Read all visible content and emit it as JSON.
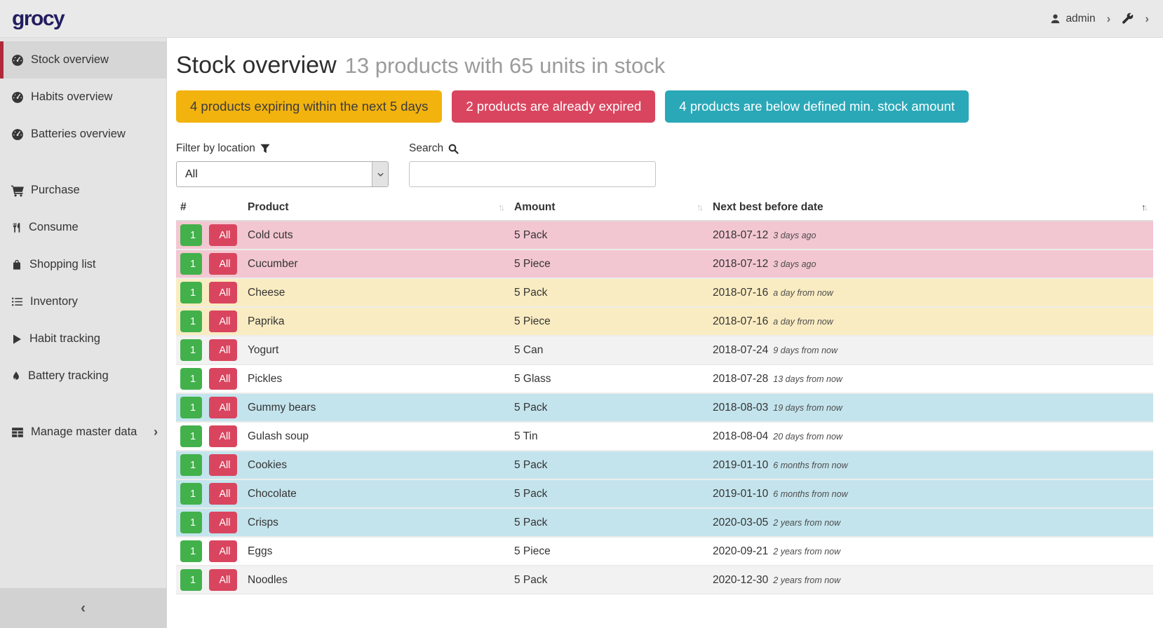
{
  "header": {
    "logo": "grocy",
    "user": "admin",
    "user_chevron": "›",
    "settings_chevron": "›"
  },
  "sidebar": {
    "collapse_icon": "‹",
    "groups": [
      [
        {
          "label": "Stock overview",
          "icon": "tachometer-icon",
          "active": true
        },
        {
          "label": "Habits overview",
          "icon": "tachometer-icon"
        },
        {
          "label": "Batteries overview",
          "icon": "tachometer-icon"
        }
      ],
      [
        {
          "label": "Purchase",
          "icon": "cart-icon"
        },
        {
          "label": "Consume",
          "icon": "utensils-icon"
        },
        {
          "label": "Shopping list",
          "icon": "bag-icon"
        },
        {
          "label": "Inventory",
          "icon": "list-icon"
        },
        {
          "label": "Habit tracking",
          "icon": "play-icon"
        },
        {
          "label": "Battery tracking",
          "icon": "tint-icon"
        }
      ],
      [
        {
          "label": "Manage master data",
          "icon": "table-icon",
          "chevron": "›"
        }
      ]
    ]
  },
  "page": {
    "title": "Stock overview",
    "subtitle": "13 products with 65 units in stock"
  },
  "alerts": [
    {
      "label": "4 products expiring within the next 5 days",
      "bg": "#f3b30e",
      "fg": "#3c3c3c"
    },
    {
      "label": "2 products are already expired",
      "bg": "#d9455f",
      "fg": "#ffffff"
    },
    {
      "label": "4 products are below defined min. stock amount",
      "bg": "#2aa8b8",
      "fg": "#ffffff"
    }
  ],
  "filters": {
    "location_label": "Filter by location",
    "location_value": "All",
    "search_label": "Search",
    "search_value": ""
  },
  "table": {
    "columns": [
      {
        "label": "#",
        "sort": "none"
      },
      {
        "label": "Product",
        "sort": "both"
      },
      {
        "label": "Amount",
        "sort": "both"
      },
      {
        "label": "Next best before date",
        "sort": "asc"
      }
    ],
    "consume_one_label": "1",
    "consume_all_label": "All",
    "rows": [
      {
        "product": "Cold cuts",
        "amount": "5 Pack",
        "date": "2018-07-12",
        "relative": "3 days ago",
        "status": "expired"
      },
      {
        "product": "Cucumber",
        "amount": "5 Piece",
        "date": "2018-07-12",
        "relative": "3 days ago",
        "status": "expired"
      },
      {
        "product": "Cheese",
        "amount": "5 Pack",
        "date": "2018-07-16",
        "relative": "a day from now",
        "status": "expiring"
      },
      {
        "product": "Paprika",
        "amount": "5 Piece",
        "date": "2018-07-16",
        "relative": "a day from now",
        "status": "expiring"
      },
      {
        "product": "Yogurt",
        "amount": "5 Can",
        "date": "2018-07-24",
        "relative": "9 days from now",
        "status": "none"
      },
      {
        "product": "Pickles",
        "amount": "5 Glass",
        "date": "2018-07-28",
        "relative": "13 days from now",
        "status": "none"
      },
      {
        "product": "Gummy bears",
        "amount": "5 Pack",
        "date": "2018-08-03",
        "relative": "19 days from now",
        "status": "belowmin"
      },
      {
        "product": "Gulash soup",
        "amount": "5 Tin",
        "date": "2018-08-04",
        "relative": "20 days from now",
        "status": "none"
      },
      {
        "product": "Cookies",
        "amount": "5 Pack",
        "date": "2019-01-10",
        "relative": "6 months from now",
        "status": "belowmin"
      },
      {
        "product": "Chocolate",
        "amount": "5 Pack",
        "date": "2019-01-10",
        "relative": "6 months from now",
        "status": "belowmin"
      },
      {
        "product": "Crisps",
        "amount": "5 Pack",
        "date": "2020-03-05",
        "relative": "2 years from now",
        "status": "belowmin"
      },
      {
        "product": "Eggs",
        "amount": "5 Piece",
        "date": "2020-09-21",
        "relative": "2 years from now",
        "status": "none"
      },
      {
        "product": "Noodles",
        "amount": "5 Pack",
        "date": "2020-12-30",
        "relative": "2 years from now",
        "status": "none"
      }
    ]
  },
  "colors": {
    "accent_red": "#b0293a",
    "logo_navy": "#231d60",
    "row_expired": "#f3c7d1",
    "row_expiring": "#faecc2",
    "row_below_min": "#c4e4ed",
    "button_green": "#42b14b",
    "button_red": "#d9455f"
  }
}
